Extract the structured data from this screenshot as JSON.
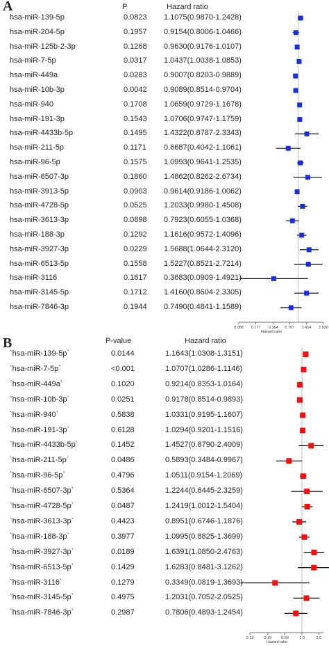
{
  "chart_data": [
    {
      "type": "forest",
      "panel_label": "A",
      "headers": {
        "p": "P",
        "hr": "Hazard ratio"
      },
      "xaxis_label": "Hazard ratio",
      "xticks": [
        "0.088",
        "0.177",
        "0.364",
        "0.707",
        "1.414",
        "2.828"
      ],
      "xtick_labels": [
        "0.088",
        "0.177",
        "0.364",
        "0.707",
        "1.414",
        "2.830"
      ],
      "log_scale": true,
      "reference_line": 1,
      "marker_color": "#1a2fd6",
      "rows": [
        {
          "label": "hsa-miR-139-5p",
          "p": "0.0823",
          "hr_text": "1.1075(0.9870-1.2428)",
          "hr": 1.1075,
          "lo": 0.987,
          "hi": 1.2428
        },
        {
          "label": "hsa-miR-204-5p",
          "p": "0.1957",
          "hr_text": "0.9154(0.8006-1.0466)",
          "hr": 0.9154,
          "lo": 0.8006,
          "hi": 1.0466
        },
        {
          "label": "hsa-miR-125b-2-3p",
          "p": "0.1268",
          "hr_text": "0.9630(0.9176-1.0107)",
          "hr": 0.963,
          "lo": 0.9176,
          "hi": 1.0107
        },
        {
          "label": "hsa-miR-7-5p",
          "p": "0.0317",
          "hr_text": "1.0437(1.0038-1.0853)",
          "hr": 1.0437,
          "lo": 1.0038,
          "hi": 1.0853
        },
        {
          "label": "hsa-miR-449a",
          "p": "0.0283",
          "hr_text": "0.9007(0.8203-0.9889)",
          "hr": 0.9007,
          "lo": 0.8203,
          "hi": 0.9889
        },
        {
          "label": "hsa-miR-10b-3p",
          "p": "0.0042",
          "hr_text": "0.9089(0.8514-0.9704)",
          "hr": 0.9089,
          "lo": 0.8514,
          "hi": 0.9704
        },
        {
          "label": "hsa-miR-940",
          "p": "0.1708",
          "hr_text": "1.0659(0.9729-1.1678)",
          "hr": 1.0659,
          "lo": 0.9729,
          "hi": 1.1678
        },
        {
          "label": "hsa-miR-191-3p",
          "p": "0.1543",
          "hr_text": "1.0706(0.9747-1.1759)",
          "hr": 1.0706,
          "lo": 0.9747,
          "hi": 1.1759
        },
        {
          "label": "hsa-miR-4433b-5p",
          "p": "0.1495",
          "hr_text": "1.4322(0.8787-2.3343)",
          "hr": 1.4322,
          "lo": 0.8787,
          "hi": 2.3343
        },
        {
          "label": "hsa-miR-211-5p",
          "p": "0.1171",
          "hr_text": "0.6687(0.4042-1.1061)",
          "hr": 0.6687,
          "lo": 0.4042,
          "hi": 1.1061
        },
        {
          "label": "hsa-miR-96-5p",
          "p": "0.1575",
          "hr_text": "1.0993(0.9641-1.2535)",
          "hr": 1.0993,
          "lo": 0.9641,
          "hi": 1.2535
        },
        {
          "label": "hsa-miR-6507-3p",
          "p": "0.1860",
          "hr_text": "1.4862(0.8262-2.6734)",
          "hr": 1.4862,
          "lo": 0.8262,
          "hi": 2.6734
        },
        {
          "label": "hsa-miR-3913-5p",
          "p": "0.0903",
          "hr_text": "0.9614(0.9186-1.0062)",
          "hr": 0.9614,
          "lo": 0.9186,
          "hi": 1.0062
        },
        {
          "label": "hsa-miR-4728-5p",
          "p": "0.0525",
          "hr_text": "1.2033(0.9980-1.4508)",
          "hr": 1.2033,
          "lo": 0.998,
          "hi": 1.4508
        },
        {
          "label": "hsa-miR-3613-3p",
          "p": "0.0898",
          "hr_text": "0.7923(0.6055-1.0368)",
          "hr": 0.7923,
          "lo": 0.6055,
          "hi": 1.0368
        },
        {
          "label": "hsa-miR-188-3p",
          "p": "0.1292",
          "hr_text": "1.1616(0.9572-1.4096)",
          "hr": 1.1616,
          "lo": 0.9572,
          "hi": 1.4096
        },
        {
          "label": "hsa-miR-3927-3p",
          "p": "0.0229",
          "hr_text": "1.5688(1.0644-2.3120)",
          "hr": 1.5688,
          "lo": 1.0644,
          "hi": 2.312
        },
        {
          "label": "hsa-miR-6513-5p",
          "p": "0.1558",
          "hr_text": "1.5227(0.8521-2.7214)",
          "hr": 1.5227,
          "lo": 0.8521,
          "hi": 2.7214
        },
        {
          "label": "hsa-miR-3116",
          "p": "0.1617",
          "hr_text": "0.3683(0.0909-1.4921)",
          "hr": 0.3683,
          "lo": 0.0909,
          "hi": 1.4921
        },
        {
          "label": "hsa-miR-3145-5p",
          "p": "0.1712",
          "hr_text": "1.4160(0.8604-2.3305)",
          "hr": 1.416,
          "lo": 0.8604,
          "hi": 2.3305
        },
        {
          "label": "hsa-miR-7846-3p",
          "p": "0.1944",
          "hr_text": "0.7490(0.4841-1.1589)",
          "hr": 0.749,
          "lo": 0.4841,
          "hi": 1.1589
        }
      ]
    },
    {
      "type": "forest",
      "panel_label": "B",
      "headers": {
        "p": "P-value",
        "hr": "Hazard ratio"
      },
      "xaxis_label": "Hazard ratio",
      "xticks": [
        "0.12",
        "0.25",
        "0.50",
        "1.0",
        "2.0"
      ],
      "xtick_labels": [
        "0.12",
        "0.25",
        "0.50",
        "1.0",
        "2.0"
      ],
      "log_scale": true,
      "reference_line": 1,
      "marker_color": "#ee1111",
      "rows": [
        {
          "label": "`hsa-miR-139-5p`",
          "p": "0.0144",
          "hr_text": "1.1643(1.0308-1.3151)",
          "hr": 1.1643,
          "lo": 1.0308,
          "hi": 1.3151
        },
        {
          "label": "`hsa-miR-7-5p`",
          "p": "<0.001",
          "hr_text": "1.0707(1.0286-1.1146)",
          "hr": 1.0707,
          "lo": 1.0286,
          "hi": 1.1146
        },
        {
          "label": "`hsa-miR-449a`",
          "p": "0.1020",
          "hr_text": "0.9214(0.8353-1.0164)",
          "hr": 0.9214,
          "lo": 0.8353,
          "hi": 1.0164
        },
        {
          "label": "`hsa-miR-10b-3p`",
          "p": "0.0251",
          "hr_text": "0.9178(0.8514-0.9893)",
          "hr": 0.9178,
          "lo": 0.8514,
          "hi": 0.9893
        },
        {
          "label": "`hsa-miR-940`",
          "p": "0.5838",
          "hr_text": "1.0331(0.9195-1.1607)",
          "hr": 1.0331,
          "lo": 0.9195,
          "hi": 1.1607
        },
        {
          "label": "`hsa-miR-191-3p`",
          "p": "0.6128",
          "hr_text": "1.0294(0.9201-1.1516)",
          "hr": 1.0294,
          "lo": 0.9201,
          "hi": 1.1516
        },
        {
          "label": "`hsa-miR-4433b-5p`",
          "p": "0.1452",
          "hr_text": "1.4527(0.8790-2.4009)",
          "hr": 1.4527,
          "lo": 0.879,
          "hi": 2.4009
        },
        {
          "label": "`hsa-miR-211-5p`",
          "p": "0.0486",
          "hr_text": "0.5893(0.3484-0.9967)",
          "hr": 0.5893,
          "lo": 0.3484,
          "hi": 0.9967
        },
        {
          "label": "`hsa-miR-96-5p`",
          "p": "0.4796",
          "hr_text": "1.0511(0.9154-1.2069)",
          "hr": 1.0511,
          "lo": 0.9154,
          "hi": 1.2069
        },
        {
          "label": "`hsa-miR-6507-3p`",
          "p": "0.5364",
          "hr_text": "1.2244(0.6445-2.3259)",
          "hr": 1.2244,
          "lo": 0.6445,
          "hi": 2.3259
        },
        {
          "label": "`hsa-miR-4728-5p`",
          "p": "0.0487",
          "hr_text": "1.2419(1.0012-1.5404)",
          "hr": 1.2419,
          "lo": 1.0012,
          "hi": 1.5404
        },
        {
          "label": "`hsa-miR-3613-3p`",
          "p": "0.4423",
          "hr_text": "0.8951(0.6746-1.1876)",
          "hr": 0.8951,
          "lo": 0.6746,
          "hi": 1.1876
        },
        {
          "label": "`hsa-miR-188-3p`",
          "p": "0.3977",
          "hr_text": "1.0995(0.8825-1.3699)",
          "hr": 1.0995,
          "lo": 0.8825,
          "hi": 1.3699
        },
        {
          "label": "`hsa-miR-3927-3p`",
          "p": "0.0189",
          "hr_text": "1.6391(1.0850-2.4763)",
          "hr": 1.6391,
          "lo": 1.085,
          "hi": 2.4763
        },
        {
          "label": "`hsa-miR-6513-5p`",
          "p": "0.1429",
          "hr_text": "1.6283(0.8481-3.1262)",
          "hr": 1.6283,
          "lo": 0.8481,
          "hi": 3.1262
        },
        {
          "label": "`hsa-miR-3116`",
          "p": "0.1279",
          "hr_text": "0.3349(0.0819-1.3693)",
          "hr": 0.3349,
          "lo": 0.0819,
          "hi": 1.3693
        },
        {
          "label": "`hsa-miR-3145-5p`",
          "p": "0.4975",
          "hr_text": "1.2031(0.7052-2.0525)",
          "hr": 1.2031,
          "lo": 0.7052,
          "hi": 2.0525
        },
        {
          "label": "`hsa-miR-7846-3p`",
          "p": "0.2987",
          "hr_text": "0.7806(0.4893-1.2454)",
          "hr": 0.7806,
          "lo": 0.4893,
          "hi": 1.2454
        }
      ]
    }
  ]
}
